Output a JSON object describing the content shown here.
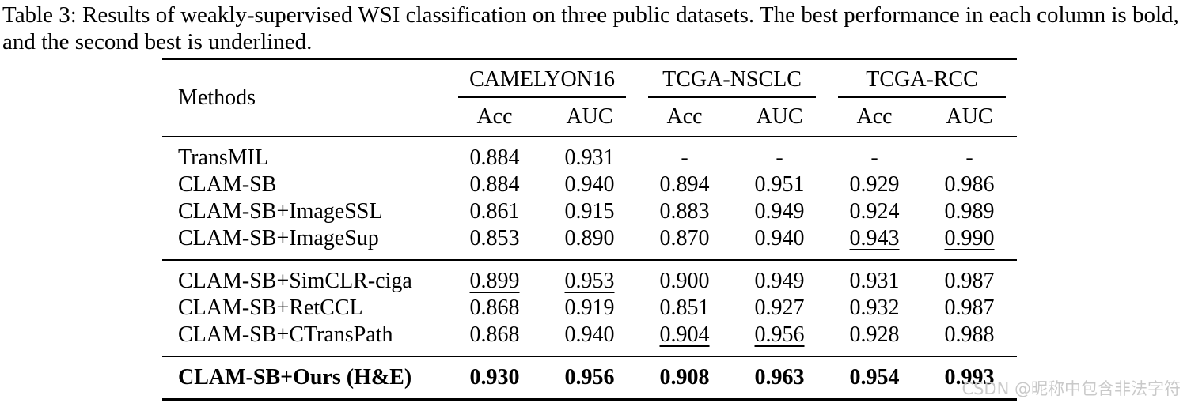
{
  "caption": "Table 3: Results of weakly-supervised WSI classification on three public datasets. The best performance in each column is bold, and the second best is underlined.",
  "table": {
    "methods_header": "Methods",
    "groups": [
      {
        "label": "CAMELYON16",
        "sub": [
          "Acc",
          "AUC"
        ]
      },
      {
        "label": "TCGA-NSCLC",
        "sub": [
          "Acc",
          "AUC"
        ]
      },
      {
        "label": "TCGA-RCC",
        "sub": [
          "Acc",
          "AUC"
        ]
      }
    ],
    "sections": [
      {
        "bold": false,
        "rows": [
          {
            "method": "TransMIL",
            "values": [
              "0.884",
              "0.931",
              "-",
              "-",
              "-",
              "-"
            ],
            "underline": []
          },
          {
            "method": "CLAM-SB",
            "values": [
              "0.884",
              "0.940",
              "0.894",
              "0.951",
              "0.929",
              "0.986"
            ],
            "underline": []
          },
          {
            "method": "CLAM-SB+ImageSSL",
            "values": [
              "0.861",
              "0.915",
              "0.883",
              "0.949",
              "0.924",
              "0.989"
            ],
            "underline": []
          },
          {
            "method": "CLAM-SB+ImageSup",
            "values": [
              "0.853",
              "0.890",
              "0.870",
              "0.940",
              "0.943",
              "0.990"
            ],
            "underline": [
              4,
              5
            ]
          }
        ]
      },
      {
        "bold": false,
        "rows": [
          {
            "method": "CLAM-SB+SimCLR-ciga",
            "values": [
              "0.899",
              "0.953",
              "0.900",
              "0.949",
              "0.931",
              "0.987"
            ],
            "underline": [
              0,
              1
            ]
          },
          {
            "method": "CLAM-SB+RetCCL",
            "values": [
              "0.868",
              "0.919",
              "0.851",
              "0.927",
              "0.932",
              "0.987"
            ],
            "underline": []
          },
          {
            "method": "CLAM-SB+CTransPath",
            "values": [
              "0.868",
              "0.940",
              "0.904",
              "0.956",
              "0.928",
              "0.988"
            ],
            "underline": [
              2,
              3
            ]
          }
        ]
      },
      {
        "bold": true,
        "rows": [
          {
            "method": "CLAM-SB+Ours (H&E)",
            "values": [
              "0.930",
              "0.956",
              "0.908",
              "0.963",
              "0.954",
              "0.993"
            ],
            "underline": []
          }
        ]
      }
    ]
  },
  "watermark": {
    "brand": "CSDN ",
    "handle": "@昵称中包含非法字符",
    "color": "#c9c9c9"
  }
}
